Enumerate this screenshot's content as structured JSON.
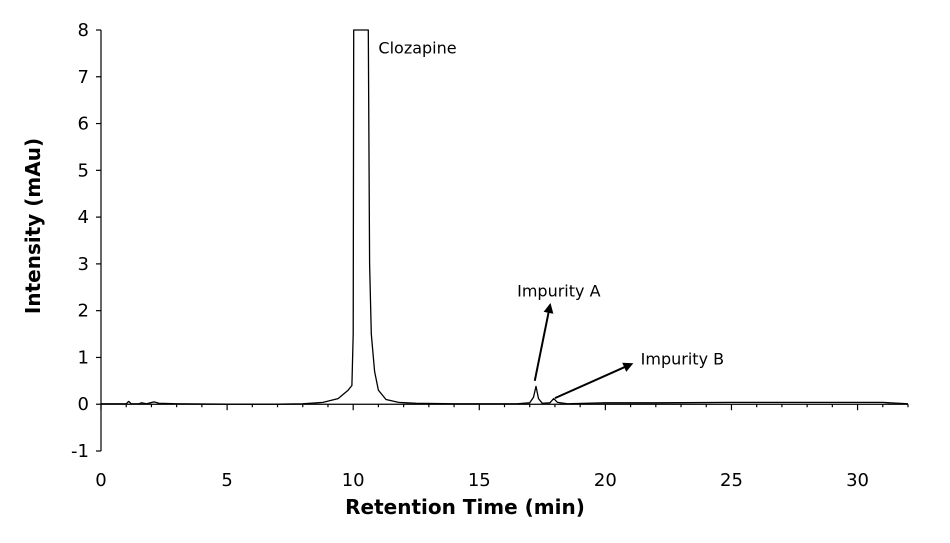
{
  "chart_data": {
    "type": "line",
    "title": "",
    "xlabel": "Retention Time (min)",
    "ylabel": "Intensity (mAu)",
    "xlim": [
      0,
      32
    ],
    "ylim": [
      -1,
      8
    ],
    "x_ticks": [
      0,
      5,
      10,
      15,
      20,
      25,
      30
    ],
    "y_ticks": [
      -1,
      0,
      1,
      2,
      3,
      4,
      5,
      6,
      7,
      8
    ],
    "grid": false,
    "legend": "none",
    "series": [
      {
        "color": "#000000",
        "points": [
          [
            0.0,
            0.01
          ],
          [
            1.0,
            0.01
          ],
          [
            1.1,
            0.06
          ],
          [
            1.2,
            0.01
          ],
          [
            1.5,
            0.01
          ],
          [
            1.6,
            0.03
          ],
          [
            1.8,
            0.01
          ],
          [
            2.1,
            0.05
          ],
          [
            2.3,
            0.02
          ],
          [
            3.0,
            0.01
          ],
          [
            5.0,
            0.0
          ],
          [
            7.0,
            0.0
          ],
          [
            8.0,
            0.01
          ],
          [
            8.8,
            0.04
          ],
          [
            9.4,
            0.12
          ],
          [
            9.8,
            0.3
          ],
          [
            9.95,
            0.4
          ],
          [
            10.0,
            1.5
          ],
          [
            10.02,
            8.0
          ],
          [
            10.6,
            8.0
          ],
          [
            10.65,
            3.0
          ],
          [
            10.72,
            1.5
          ],
          [
            10.85,
            0.7
          ],
          [
            11.0,
            0.3
          ],
          [
            11.3,
            0.1
          ],
          [
            11.8,
            0.04
          ],
          [
            12.5,
            0.02
          ],
          [
            14.0,
            0.01
          ],
          [
            16.5,
            0.01
          ],
          [
            17.0,
            0.03
          ],
          [
            17.15,
            0.15
          ],
          [
            17.25,
            0.38
          ],
          [
            17.35,
            0.12
          ],
          [
            17.5,
            0.02
          ],
          [
            17.8,
            0.03
          ],
          [
            17.95,
            0.12
          ],
          [
            18.1,
            0.04
          ],
          [
            18.5,
            0.01
          ],
          [
            20.0,
            0.03
          ],
          [
            22.0,
            0.03
          ],
          [
            25.0,
            0.04
          ],
          [
            28.0,
            0.04
          ],
          [
            31.0,
            0.04
          ],
          [
            32.0,
            0.01
          ]
        ]
      }
    ],
    "annotations": [
      {
        "text": "Clozapine",
        "x": 11.0,
        "y": 7.5
      },
      {
        "text": "Impurity A",
        "x": 16.5,
        "y": 2.3,
        "arrow_from": [
          17.2,
          0.5
        ],
        "arrow_to": [
          17.8,
          2.1
        ]
      },
      {
        "text": "Impurity B",
        "x": 21.4,
        "y": 0.85,
        "arrow_from": [
          18.0,
          0.13
        ],
        "arrow_to": [
          21.0,
          0.85
        ]
      }
    ]
  }
}
